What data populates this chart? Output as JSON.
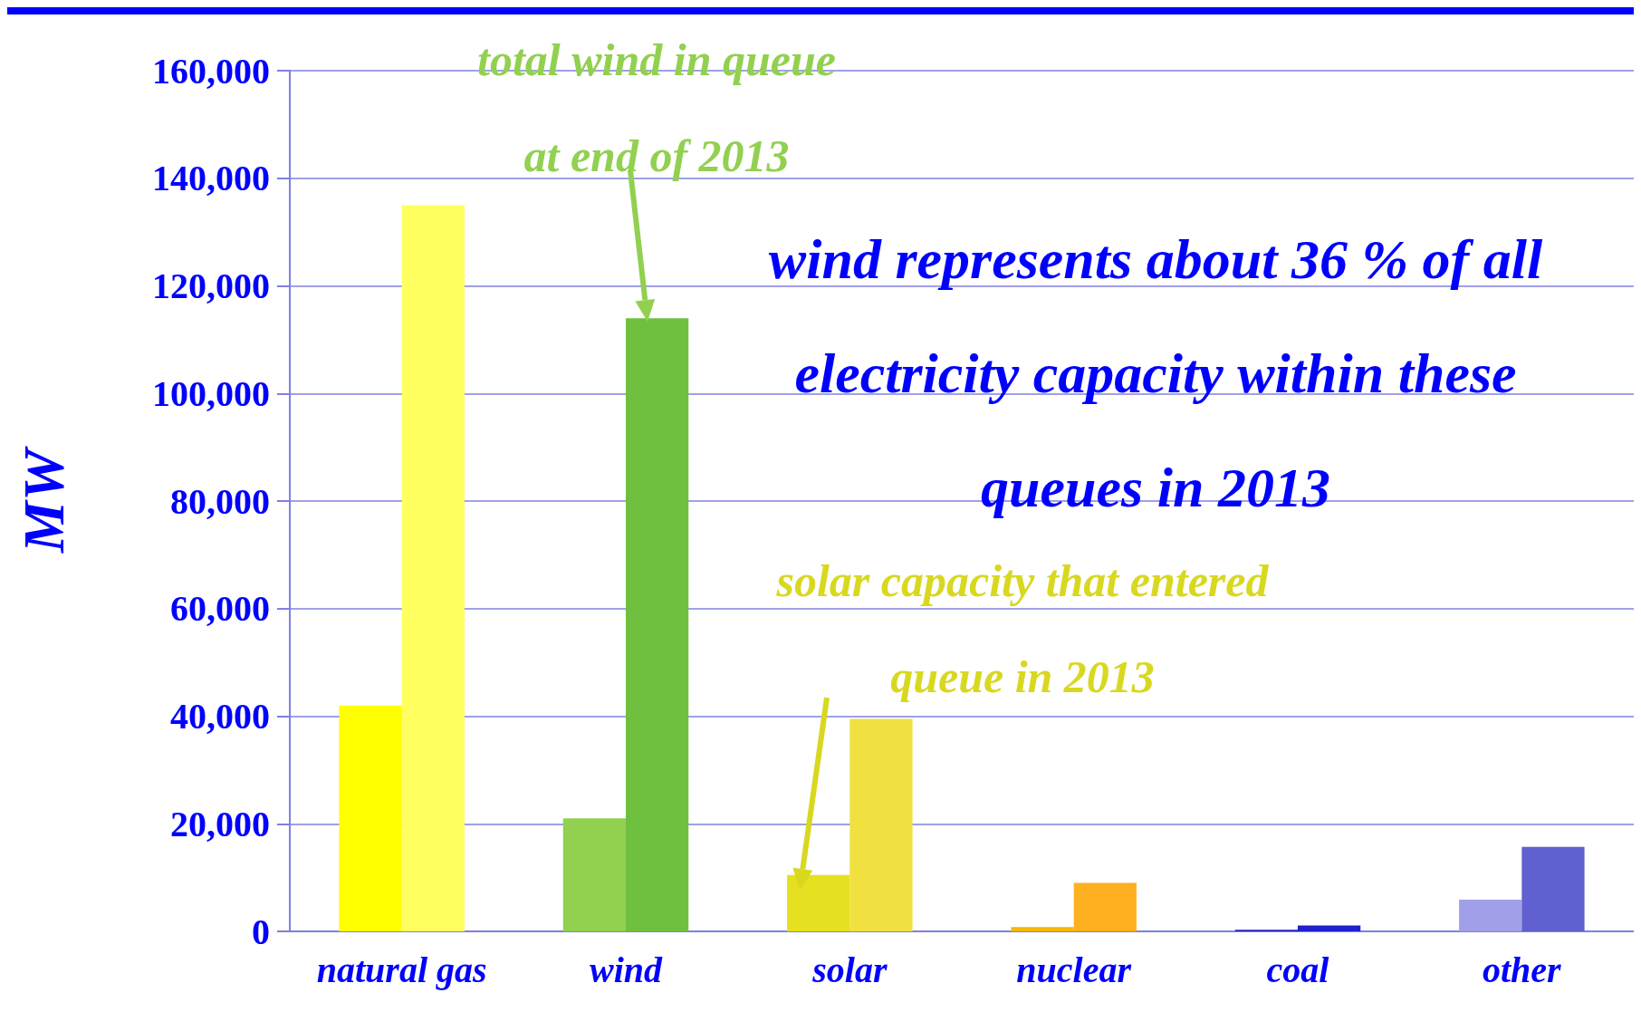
{
  "chart_data": {
    "type": "bar",
    "ylabel": "MW",
    "categories": [
      "natural gas",
      "wind",
      "solar",
      "nuclear",
      "coal",
      "other"
    ],
    "series": [
      {
        "colors": [
          "#ffff00",
          "#92d050",
          "#e5e020",
          "#f5b800",
          "#2020c0",
          "#a0a0e8"
        ],
        "values": [
          42000,
          21000,
          10500,
          800,
          300,
          5900
        ]
      },
      {
        "colors": [
          "#ffff60",
          "#70c040",
          "#f0e040",
          "#ffb020",
          "#2020d0",
          "#6060d0"
        ],
        "values": [
          135000,
          114000,
          39500,
          9000,
          1100,
          15700
        ]
      }
    ],
    "ylim": [
      0,
      160000
    ],
    "yticks": [
      0,
      {
        "value": 20000,
        "label": "20,000"
      },
      {
        "value": 40000,
        "label": "40,000"
      },
      {
        "value": 60000,
        "label": "60,000"
      },
      {
        "value": 80000,
        "label": "80,000"
      },
      {
        "value": 100000,
        "label": "100,000"
      },
      {
        "value": 120000,
        "label": "120,000"
      },
      {
        "value": 140000,
        "label": "140,000"
      },
      {
        "value": 160000,
        "label": "160,000"
      }
    ],
    "grid": "y",
    "annotations": [
      "total wind in queue\nat end of 2013",
      "solar capacity that entered\nqueue in 2013",
      "wind represents about 36 % of all\nelectricity capacity within these\nqueues in 2013"
    ]
  }
}
